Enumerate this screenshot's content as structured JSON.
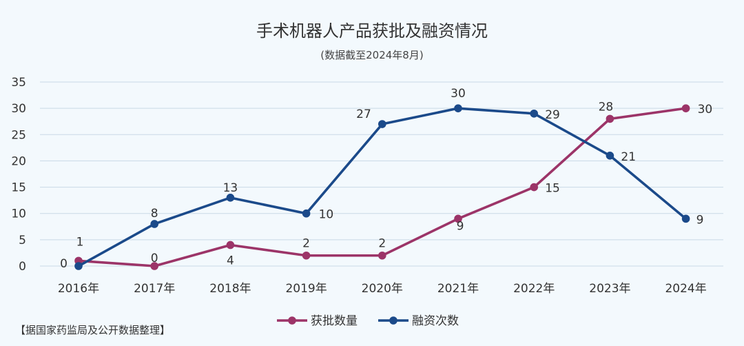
{
  "chart_data": {
    "type": "line",
    "title": "手术机器人产品获批及融资情况",
    "subtitle": "(数据截至2024年8月)",
    "categories": [
      "2016年",
      "2017年",
      "2018年",
      "2019年",
      "2020年",
      "2021年",
      "2022年",
      "2023年",
      "2024年"
    ],
    "ylim": [
      0,
      35
    ],
    "yticks": [
      0,
      5,
      10,
      15,
      20,
      25,
      30,
      35
    ],
    "grid": true,
    "legend": "bottom",
    "series": [
      {
        "name": "获批数量",
        "color": "#9c3468",
        "values": [
          1,
          0,
          4,
          2,
          2,
          9,
          15,
          28,
          30
        ]
      },
      {
        "name": "融资次数",
        "color": "#1b4a8a",
        "values": [
          0,
          8,
          13,
          10,
          27,
          30,
          29,
          21,
          9
        ]
      }
    ],
    "source": "【据国家药监局及公开数据整理】"
  }
}
